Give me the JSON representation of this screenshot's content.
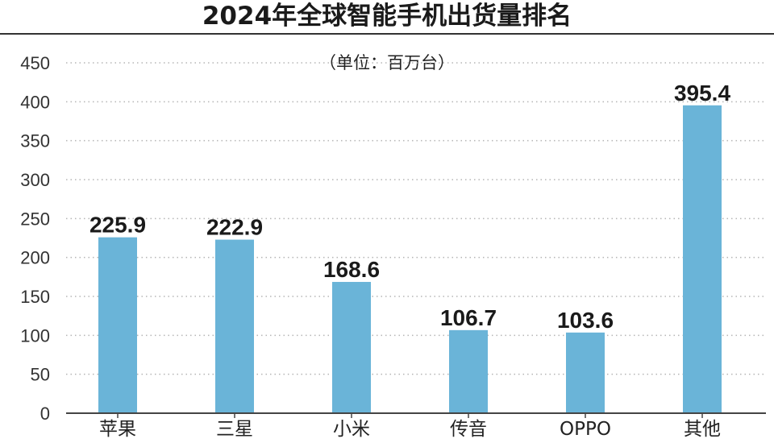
{
  "chart_data": {
    "type": "bar",
    "title": "2024年全球智能手机出货量排名",
    "subtitle": "（单位：百万台）",
    "categories": [
      "苹果",
      "三星",
      "小米",
      "传音",
      "OPPO",
      "其他"
    ],
    "values": [
      225.9,
      222.9,
      168.6,
      106.7,
      103.6,
      395.4
    ],
    "data_labels": [
      "225.9",
      "222.9",
      "168.6",
      "106.7",
      "103.6",
      "395.4"
    ],
    "yticks": [
      "0",
      "50",
      "100",
      "150",
      "200",
      "250",
      "300",
      "350",
      "400",
      "450"
    ],
    "ylim": [
      0,
      450
    ],
    "grid": "horizontal-dotted",
    "legend": "none",
    "bar_color": "#6ab4d8"
  }
}
